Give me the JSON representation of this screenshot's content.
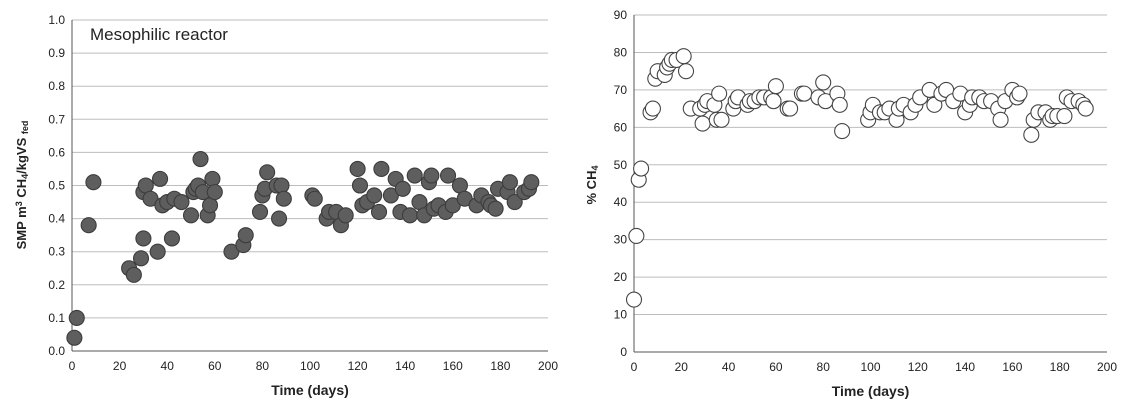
{
  "chart_data": [
    {
      "type": "scatter",
      "title": "",
      "annotation": "Mesophilic reactor",
      "xlabel": "Time (days)",
      "ylabel_parts": [
        "SMP  m",
        "3",
        " CH",
        "4",
        "/kgVS ",
        "fed"
      ],
      "xlim": [
        0,
        200
      ],
      "ylim": [
        0,
        1.0
      ],
      "x_ticks": [
        "0",
        "20",
        "40",
        "60",
        "80",
        "100",
        "120",
        "140",
        "160",
        "180",
        "200"
      ],
      "y_ticks": [
        "0.0",
        "0.1",
        "0.2",
        "0.3",
        "0.4",
        "0.5",
        "0.6",
        "0.7",
        "0.8",
        "0.9",
        "1.0"
      ],
      "grid": true,
      "marker": {
        "fill": "#5e5e5e",
        "stroke": "#3c3c3c"
      },
      "x": [
        1,
        2,
        7,
        9,
        24,
        26,
        29,
        30,
        30,
        31,
        33,
        36,
        37,
        38,
        40,
        42,
        43,
        46,
        50,
        51,
        52,
        53,
        54,
        55,
        57,
        58,
        59,
        60,
        67,
        72,
        73,
        79,
        80,
        81,
        82,
        86,
        87,
        88,
        89,
        101,
        102,
        107,
        108,
        111,
        113,
        115,
        120,
        121,
        122,
        124,
        127,
        129,
        130,
        134,
        136,
        138,
        139,
        142,
        144,
        146,
        148,
        150,
        151,
        152,
        154,
        157,
        158,
        160,
        163,
        165,
        170,
        172,
        175,
        176,
        178,
        179,
        183,
        184,
        186,
        190,
        192,
        193
      ],
      "y": [
        0.04,
        0.1,
        0.38,
        0.51,
        0.25,
        0.23,
        0.28,
        0.34,
        0.48,
        0.5,
        0.46,
        0.3,
        0.52,
        0.44,
        0.45,
        0.34,
        0.46,
        0.45,
        0.41,
        0.48,
        0.49,
        0.5,
        0.58,
        0.48,
        0.41,
        0.44,
        0.52,
        0.48,
        0.3,
        0.32,
        0.35,
        0.42,
        0.47,
        0.49,
        0.54,
        0.5,
        0.4,
        0.5,
        0.46,
        0.47,
        0.46,
        0.4,
        0.42,
        0.42,
        0.38,
        0.41,
        0.55,
        0.5,
        0.44,
        0.45,
        0.47,
        0.42,
        0.55,
        0.47,
        0.52,
        0.42,
        0.49,
        0.41,
        0.53,
        0.45,
        0.41,
        0.51,
        0.53,
        0.43,
        0.44,
        0.42,
        0.53,
        0.44,
        0.5,
        0.46,
        0.44,
        0.47,
        0.45,
        0.44,
        0.43,
        0.49,
        0.48,
        0.51,
        0.45,
        0.48,
        0.49,
        0.51
      ]
    },
    {
      "type": "scatter",
      "title": "",
      "xlabel": "Time (days)",
      "ylabel_parts": [
        "% CH",
        "4"
      ],
      "xlim": [
        0,
        200
      ],
      "ylim": [
        0,
        90
      ],
      "x_ticks": [
        "0",
        "20",
        "40",
        "60",
        "80",
        "100",
        "120",
        "140",
        "160",
        "180",
        "200"
      ],
      "y_ticks": [
        "0",
        "10",
        "20",
        "30",
        "40",
        "50",
        "60",
        "70",
        "80",
        "90"
      ],
      "grid": true,
      "marker": {
        "fill": "#ffffff",
        "stroke": "#444444"
      },
      "x": [
        0,
        1,
        2,
        3,
        7,
        8,
        9,
        10,
        13,
        14,
        15,
        16,
        18,
        21,
        22,
        24,
        28,
        29,
        30,
        31,
        34,
        35,
        36,
        37,
        42,
        43,
        44,
        48,
        49,
        51,
        53,
        55,
        58,
        59,
        60,
        65,
        66,
        71,
        72,
        78,
        80,
        81,
        86,
        87,
        88,
        99,
        100,
        101,
        104,
        106,
        108,
        111,
        112,
        114,
        117,
        119,
        121,
        125,
        127,
        130,
        132,
        135,
        138,
        140,
        142,
        143,
        146,
        148,
        151,
        154,
        155,
        157,
        160,
        162,
        163,
        168,
        169,
        171,
        174,
        176,
        177,
        179,
        182,
        183,
        185,
        188,
        190,
        191
      ],
      "y": [
        14,
        31,
        46,
        49,
        64,
        65,
        73,
        75,
        74,
        76,
        77,
        78,
        78,
        79,
        75,
        65,
        65,
        61,
        66,
        67,
        66,
        62,
        69,
        62,
        65,
        67,
        68,
        66,
        67,
        67,
        68,
        68,
        68,
        67,
        71,
        65,
        65,
        69,
        69,
        68,
        72,
        67,
        69,
        66,
        59,
        62,
        64,
        66,
        64,
        64,
        65,
        62,
        65,
        66,
        64,
        66,
        68,
        70,
        66,
        69,
        70,
        67,
        69,
        64,
        66,
        68,
        68,
        67,
        67,
        65,
        62,
        67,
        70,
        68,
        69,
        58,
        62,
        64,
        64,
        62,
        63,
        63,
        63,
        68,
        67,
        67,
        66,
        65
      ]
    }
  ]
}
